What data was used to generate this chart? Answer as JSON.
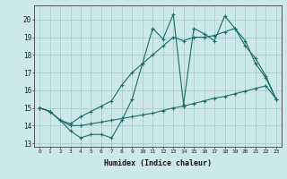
{
  "xlabel": "Humidex (Indice chaleur)",
  "background_color": "#cde8eb",
  "grid_color": "#aaccce",
  "line_color": "#1a6b6b",
  "xlim": [
    -0.5,
    23.5
  ],
  "ylim": [
    12.8,
    20.8
  ],
  "yticks": [
    13,
    14,
    15,
    16,
    17,
    18,
    19,
    20
  ],
  "xticks": [
    0,
    1,
    2,
    3,
    4,
    5,
    6,
    7,
    8,
    9,
    10,
    11,
    12,
    13,
    14,
    15,
    16,
    17,
    18,
    19,
    20,
    21,
    22,
    23
  ],
  "s1": [
    15.0,
    14.8,
    14.3,
    13.7,
    13.3,
    13.5,
    13.5,
    13.3,
    14.3,
    15.5,
    17.5,
    19.5,
    18.9,
    20.3,
    15.2,
    19.5,
    19.2,
    18.8,
    20.2,
    19.5,
    18.8,
    17.5,
    16.7,
    15.5
  ],
  "s2": [
    15.0,
    14.8,
    14.3,
    14.1,
    14.5,
    14.8,
    15.1,
    15.4,
    16.3,
    17.0,
    17.5,
    18.0,
    18.5,
    19.0,
    18.8,
    19.0,
    19.0,
    19.1,
    19.3,
    19.5,
    18.5,
    17.8,
    16.8,
    15.5
  ],
  "s3": [
    15.0,
    14.8,
    14.3,
    14.0,
    14.0,
    14.1,
    14.2,
    14.3,
    14.4,
    14.5,
    14.6,
    14.7,
    14.85,
    15.0,
    15.1,
    15.25,
    15.4,
    15.55,
    15.65,
    15.8,
    15.95,
    16.1,
    16.25,
    15.5
  ]
}
